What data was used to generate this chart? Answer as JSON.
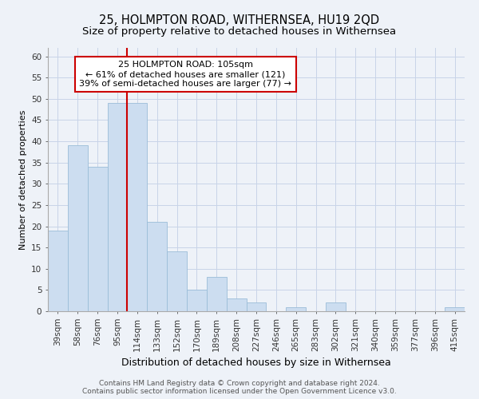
{
  "title": "25, HOLMPTON ROAD, WITHERNSEA, HU19 2QD",
  "subtitle": "Size of property relative to detached houses in Withernsea",
  "xlabel": "Distribution of detached houses by size in Withernsea",
  "ylabel": "Number of detached properties",
  "categories": [
    "39sqm",
    "58sqm",
    "76sqm",
    "95sqm",
    "114sqm",
    "133sqm",
    "152sqm",
    "170sqm",
    "189sqm",
    "208sqm",
    "227sqm",
    "246sqm",
    "265sqm",
    "283sqm",
    "302sqm",
    "321sqm",
    "340sqm",
    "359sqm",
    "377sqm",
    "396sqm",
    "415sqm"
  ],
  "values": [
    19,
    39,
    34,
    49,
    49,
    21,
    14,
    5,
    8,
    3,
    2,
    0,
    1,
    0,
    2,
    0,
    0,
    0,
    0,
    0,
    1
  ],
  "bar_color": "#ccddf0",
  "bar_edge_color": "#9bbdd8",
  "grid_color": "#c8d4e8",
  "background_color": "#eef2f8",
  "vline_x": 3.5,
  "vline_color": "#cc0000",
  "annotation_text": "25 HOLMPTON ROAD: 105sqm\n← 61% of detached houses are smaller (121)\n39% of semi-detached houses are larger (77) →",
  "annotation_box_color": "#ffffff",
  "annotation_box_edge": "#cc0000",
  "ylim": [
    0,
    62
  ],
  "yticks": [
    0,
    5,
    10,
    15,
    20,
    25,
    30,
    35,
    40,
    45,
    50,
    55,
    60
  ],
  "footnote": "Contains HM Land Registry data © Crown copyright and database right 2024.\nContains public sector information licensed under the Open Government Licence v3.0.",
  "title_fontsize": 10.5,
  "subtitle_fontsize": 9.5,
  "xlabel_fontsize": 9,
  "ylabel_fontsize": 8,
  "tick_fontsize": 7.5,
  "annotation_fontsize": 8,
  "footnote_fontsize": 6.5
}
